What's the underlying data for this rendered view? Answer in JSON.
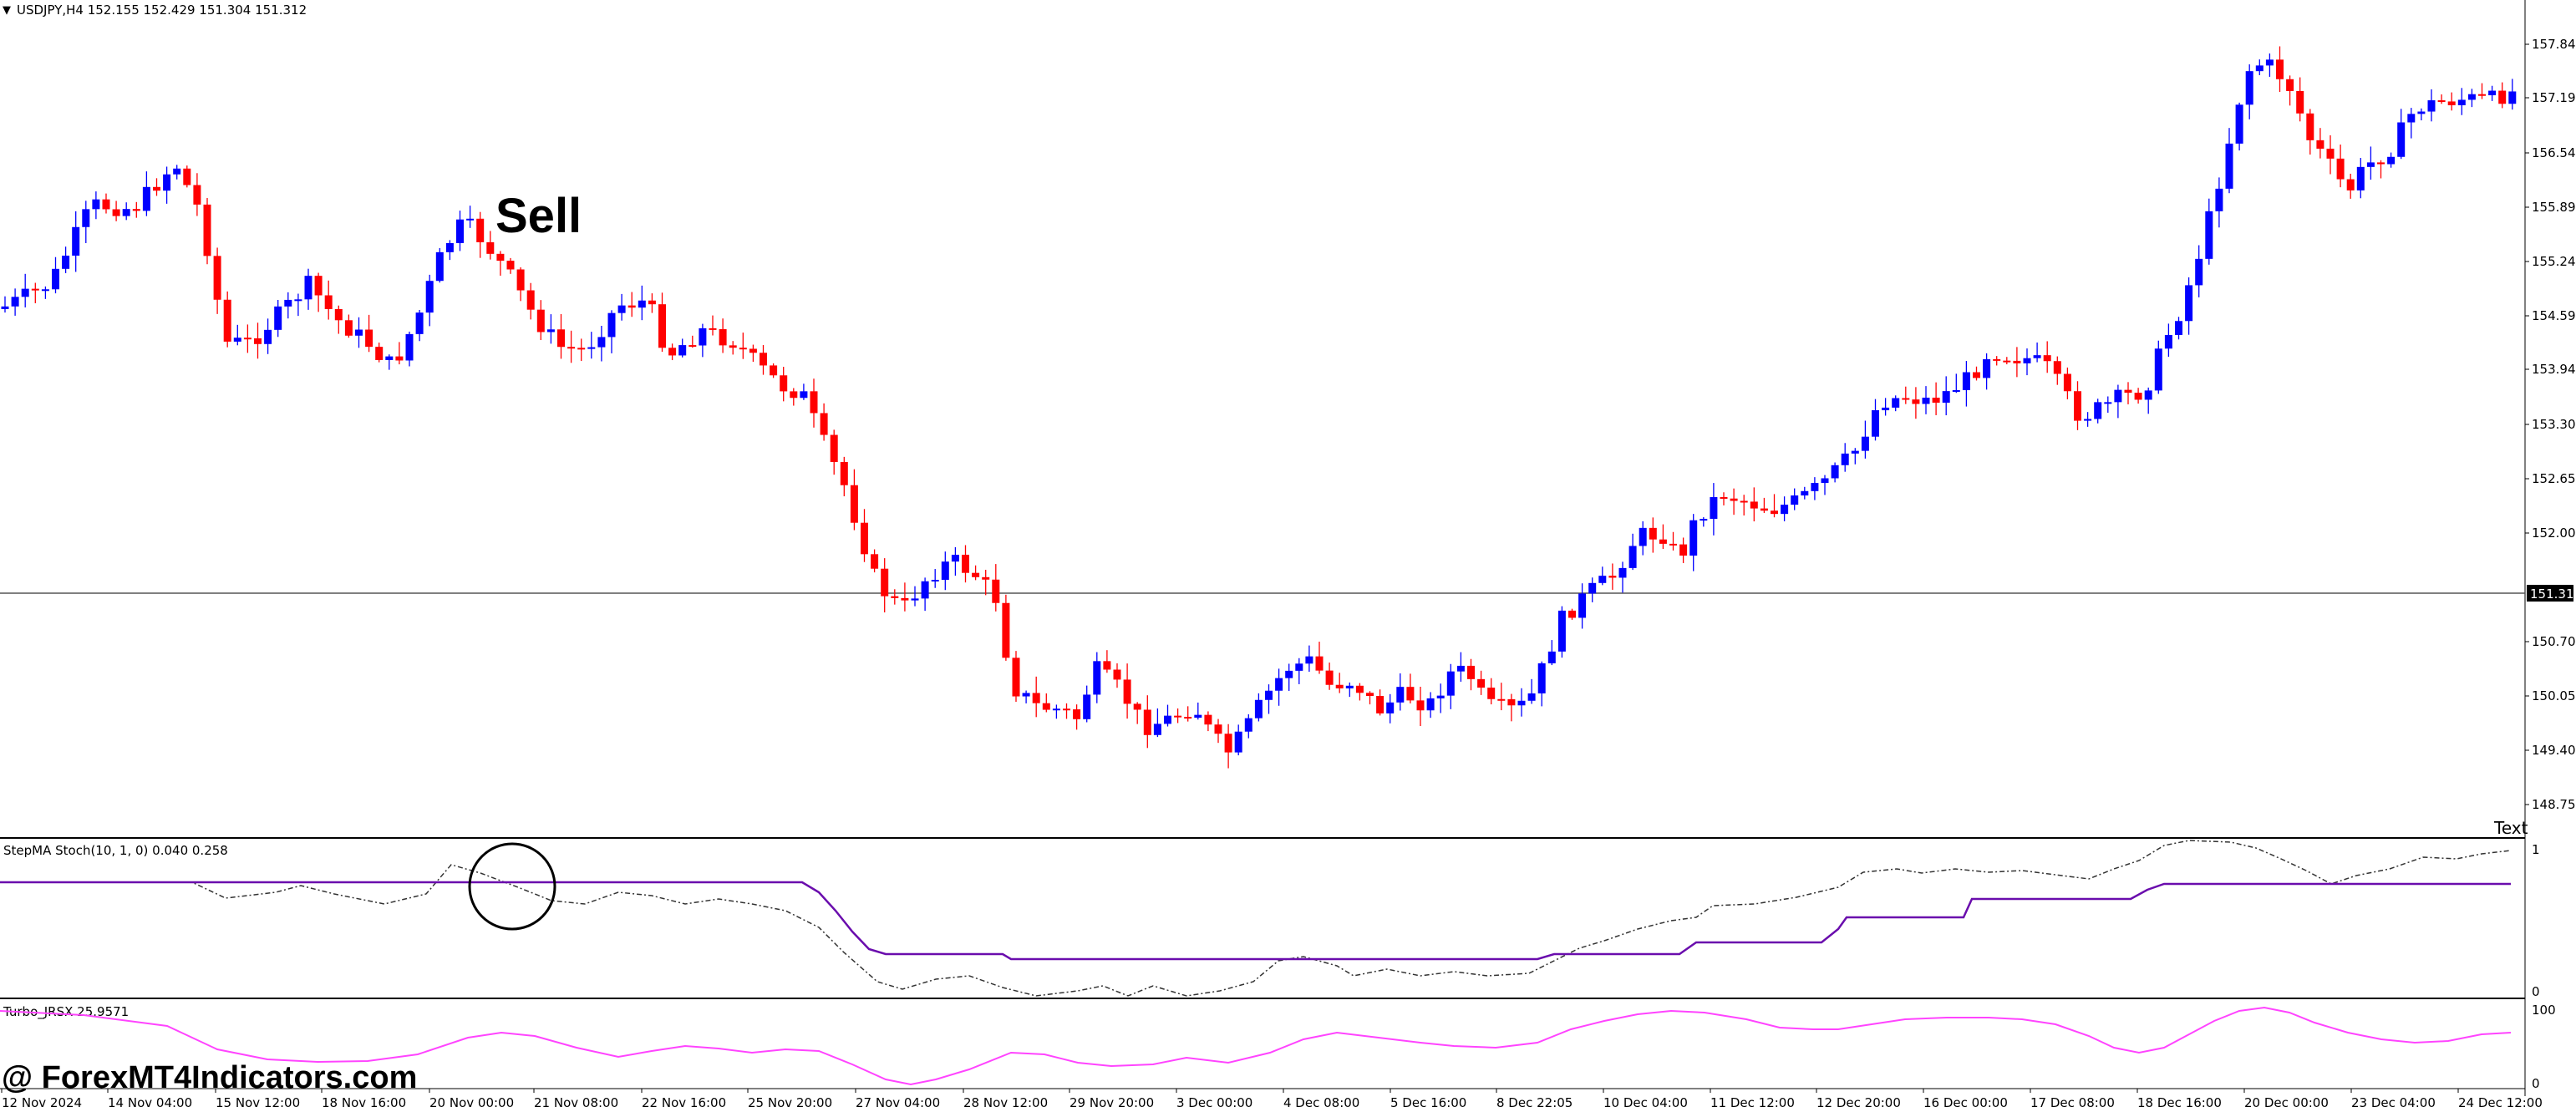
{
  "header": {
    "symbol_info": "USDJPY,H4  152.155 152.429 151.304 151.312"
  },
  "main_chart": {
    "price_axis": [
      "157.845",
      "157.195",
      "156.545",
      "155.895",
      "155.245",
      "154.595",
      "153.945",
      "153.300",
      "152.650",
      "152.000",
      "150.700",
      "150.050",
      "149.400",
      "148.750"
    ],
    "current_price": "151.312",
    "annotation_text": "Sell",
    "corner_text": "Text"
  },
  "indicator1": {
    "title": "StepMA Stoch(10, 1, 0) 0.040 0.258",
    "axis_top": "1",
    "axis_bottom": "0"
  },
  "indicator2": {
    "title": "Turbo_JRSX 25.9571",
    "axis_top": "100",
    "axis_bottom": "0"
  },
  "time_axis": [
    "12 Nov 2024",
    "14 Nov 04:00",
    "15 Nov 12:00",
    "18 Nov 16:00",
    "20 Nov 00:00",
    "21 Nov 08:00",
    "22 Nov 16:00",
    "25 Nov 20:00",
    "27 Nov 04:00",
    "28 Nov 12:00",
    "29 Nov 20:00",
    "3 Dec 00:00",
    "4 Dec 08:00",
    "5 Dec 16:00",
    "8 Dec 22:05",
    "10 Dec 04:00",
    "11 Dec 12:00",
    "12 Dec 20:00",
    "16 Dec 00:00",
    "17 Dec 08:00",
    "18 Dec 16:00",
    "20 Dec 00:00",
    "23 Dec 04:00",
    "24 Dec 12:00"
  ],
  "watermark": "@ ForexMT4Indicators.com",
  "colors": {
    "bull": "#0000ff",
    "bear": "#ff0000",
    "stepma": "#6a0dad",
    "stoch": "#333333",
    "jrsx": "#ff44ff",
    "grid": "#000000"
  }
}
